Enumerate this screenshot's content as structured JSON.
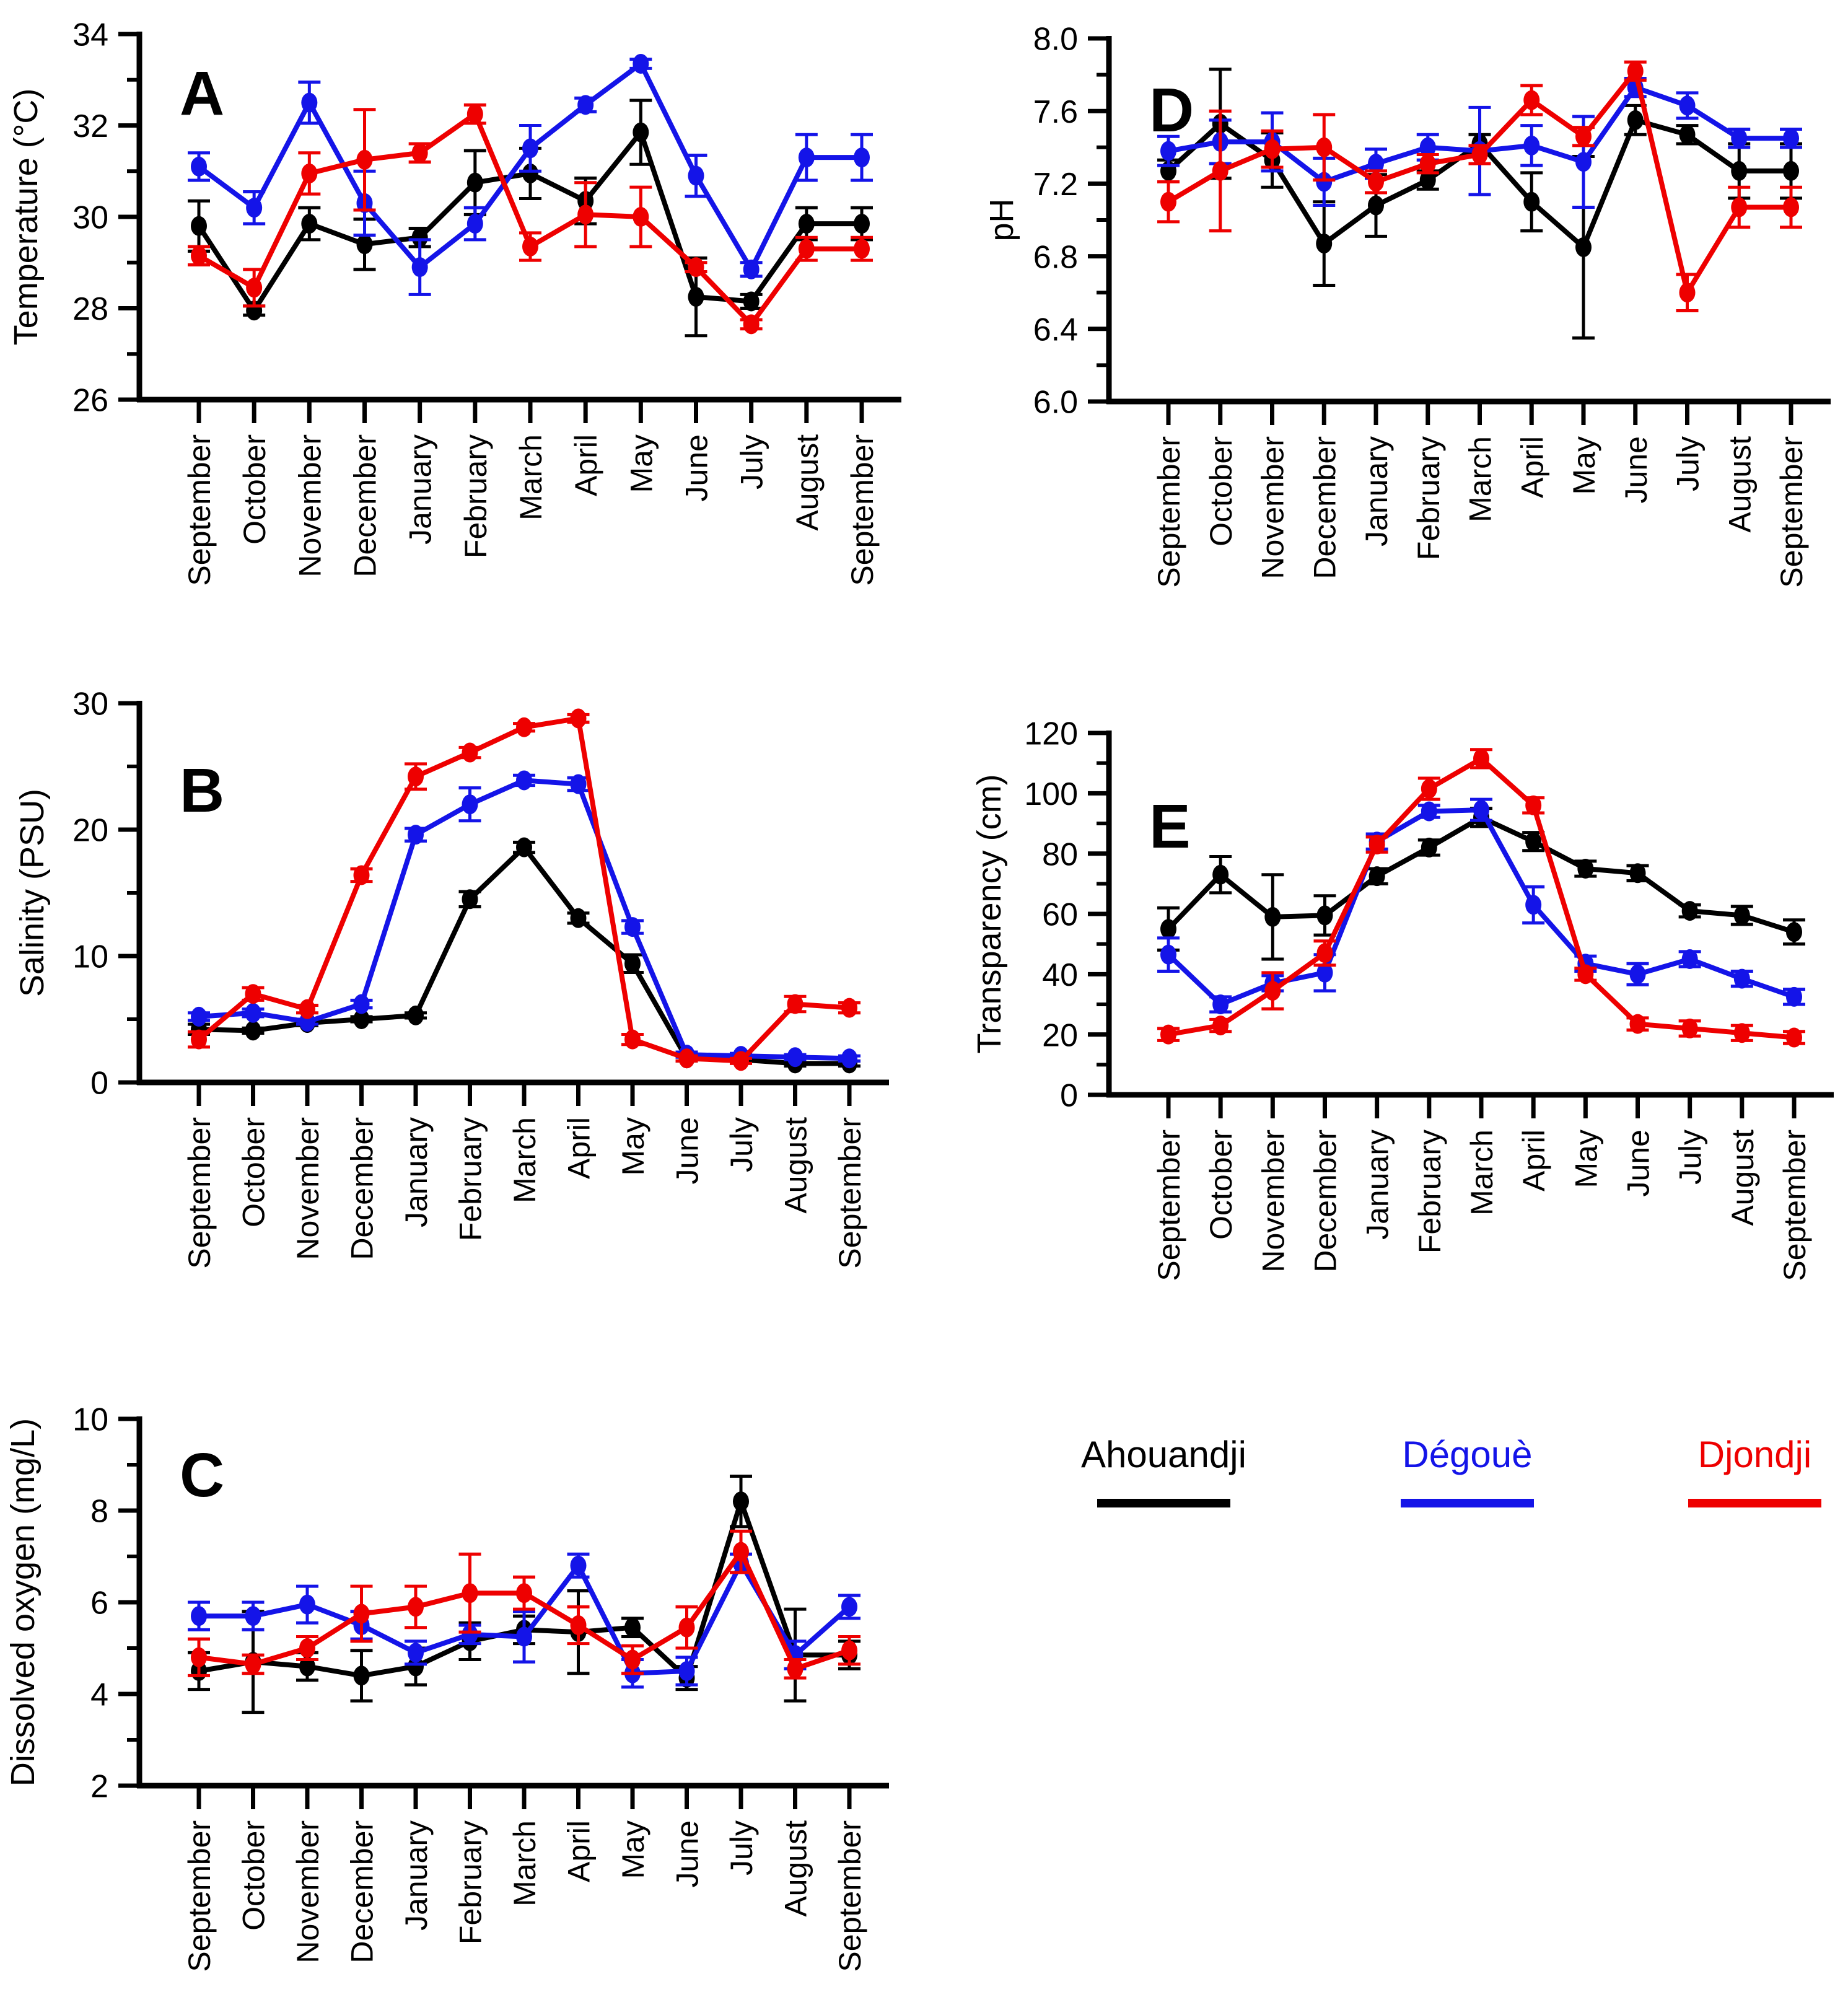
{
  "months": [
    "September",
    "October",
    "November",
    "December",
    "January",
    "February",
    "March",
    "April",
    "May",
    "June",
    "July",
    "August",
    "September"
  ],
  "legend": {
    "items": [
      {
        "label": "Ahouandji",
        "color": "#000000"
      },
      {
        "label": "Dégouè",
        "color": "#1414e8"
      },
      {
        "label": "Djondji",
        "color": "#ee0000"
      }
    ]
  },
  "chart_data": [
    {
      "id": "A",
      "type": "line",
      "panel_label": "A",
      "ylabel": "Temperature (°C)",
      "xlabel": "",
      "ylim": [
        26,
        34
      ],
      "yticks": [
        26,
        28,
        30,
        32,
        34
      ],
      "ydecimals": 0,
      "minor_ticks": true,
      "legend_position": "none",
      "grid": false,
      "series": [
        {
          "name": "Ahouandji",
          "color": "#000000",
          "values": [
            29.8,
            27.95,
            29.85,
            29.4,
            29.55,
            30.75,
            30.95,
            30.35,
            31.85,
            28.25,
            28.15,
            29.85,
            29.85
          ],
          "errors": [
            0.55,
            0.1,
            0.35,
            0.55,
            0.2,
            0.7,
            0.55,
            0.5,
            0.7,
            0.85,
            0.15,
            0.35,
            0.35
          ]
        },
        {
          "name": "Dégouè",
          "color": "#1414e8",
          "values": [
            31.1,
            30.2,
            32.5,
            30.3,
            28.9,
            29.85,
            31.5,
            32.45,
            33.35,
            30.9,
            28.85,
            31.3,
            31.3
          ],
          "errors": [
            0.3,
            0.35,
            0.45,
            0.7,
            0.6,
            0.35,
            0.5,
            0.15,
            0.1,
            0.45,
            0.15,
            0.5,
            0.5
          ]
        },
        {
          "name": "Djondji",
          "color": "#ee0000",
          "values": [
            29.15,
            28.45,
            30.95,
            31.25,
            31.4,
            32.25,
            29.35,
            30.05,
            30.0,
            28.9,
            27.65,
            29.3,
            29.3
          ],
          "errors": [
            0.2,
            0.4,
            0.45,
            1.1,
            0.2,
            0.2,
            0.3,
            0.7,
            0.65,
            0.1,
            0.1,
            0.25,
            0.25
          ]
        }
      ]
    },
    {
      "id": "B",
      "type": "line",
      "panel_label": "B",
      "ylabel": "Salinity (PSU)",
      "xlabel": "",
      "ylim": [
        0,
        30
      ],
      "yticks": [
        0,
        10,
        20,
        30
      ],
      "ydecimals": 0,
      "minor_ticks": true,
      "legend_position": "none",
      "grid": false,
      "series": [
        {
          "name": "Ahouandji",
          "color": "#000000",
          "values": [
            4.2,
            4.1,
            4.7,
            5.0,
            5.3,
            14.5,
            18.6,
            13.0,
            9.4,
            1.9,
            1.8,
            1.5,
            1.5
          ],
          "errors": [
            0.4,
            0.2,
            0.2,
            0.2,
            0.2,
            0.6,
            0.4,
            0.4,
            0.7,
            0.2,
            0.2,
            0.2,
            0.2
          ]
        },
        {
          "name": "Dégouè",
          "color": "#1414e8",
          "values": [
            5.2,
            5.5,
            4.8,
            6.2,
            19.6,
            22.0,
            23.9,
            23.6,
            12.3,
            2.2,
            2.1,
            2.0,
            1.9
          ],
          "errors": [
            0.3,
            0.3,
            0.2,
            0.3,
            0.5,
            1.3,
            0.4,
            0.5,
            0.5,
            0.2,
            0.2,
            0.2,
            0.2
          ]
        },
        {
          "name": "Djondji",
          "color": "#ee0000",
          "values": [
            3.4,
            7.0,
            5.8,
            16.4,
            24.2,
            26.1,
            28.1,
            28.8,
            3.4,
            1.9,
            1.7,
            6.2,
            5.9
          ],
          "errors": [
            0.6,
            0.5,
            0.3,
            0.5,
            1.0,
            0.4,
            0.3,
            0.3,
            0.4,
            0.2,
            0.2,
            0.6,
            0.4
          ]
        }
      ]
    },
    {
      "id": "C",
      "type": "line",
      "panel_label": "C",
      "ylabel": "Dissolved oxygen (mg/L)",
      "xlabel": "",
      "ylim": [
        2,
        10
      ],
      "yticks": [
        2,
        4,
        6,
        8,
        10
      ],
      "ydecimals": 0,
      "minor_ticks": true,
      "legend_position": "none",
      "grid": false,
      "series": [
        {
          "name": "Ahouandji",
          "color": "#000000",
          "values": [
            4.5,
            4.7,
            4.6,
            4.4,
            4.6,
            5.15,
            5.4,
            5.35,
            5.45,
            4.35,
            8.2,
            4.85,
            4.85
          ],
          "errors": [
            0.4,
            1.1,
            0.3,
            0.55,
            0.4,
            0.4,
            0.3,
            0.9,
            0.2,
            0.25,
            0.55,
            1.0,
            0.3
          ]
        },
        {
          "name": "Dégouè",
          "color": "#1414e8",
          "values": [
            5.7,
            5.7,
            5.95,
            5.5,
            4.9,
            5.3,
            5.25,
            6.8,
            4.45,
            4.5,
            6.85,
            4.85,
            5.9
          ],
          "errors": [
            0.3,
            0.3,
            0.4,
            0.3,
            0.25,
            0.2,
            0.55,
            0.25,
            0.3,
            0.3,
            0.2,
            0.3,
            0.25
          ]
        },
        {
          "name": "Djondji",
          "color": "#ee0000",
          "values": [
            4.8,
            4.65,
            5.0,
            5.75,
            5.9,
            6.2,
            6.2,
            5.5,
            4.75,
            5.45,
            7.1,
            4.55,
            4.95
          ],
          "errors": [
            0.4,
            0.2,
            0.25,
            0.6,
            0.45,
            0.85,
            0.35,
            0.4,
            0.3,
            0.45,
            0.45,
            0.2,
            0.3
          ]
        }
      ]
    },
    {
      "id": "D",
      "type": "line",
      "panel_label": "D",
      "ylabel": "pH",
      "xlabel": "",
      "ylim": [
        6.0,
        8.0
      ],
      "yticks": [
        6.0,
        6.4,
        6.8,
        7.2,
        7.6,
        8.0
      ],
      "ydecimals": 1,
      "minor_ticks": true,
      "legend_position": "none",
      "grid": false,
      "series": [
        {
          "name": "Ahouandji",
          "color": "#000000",
          "values": [
            7.27,
            7.53,
            7.33,
            6.87,
            7.08,
            7.22,
            7.42,
            7.1,
            6.85,
            7.55,
            7.47,
            7.27,
            7.27
          ],
          "errors": [
            0.06,
            0.3,
            0.15,
            0.23,
            0.17,
            0.05,
            0.05,
            0.16,
            0.5,
            0.08,
            0.05,
            0.15,
            0.15
          ]
        },
        {
          "name": "Dégouè",
          "color": "#1414e8",
          "values": [
            7.38,
            7.43,
            7.43,
            7.21,
            7.31,
            7.4,
            7.38,
            7.41,
            7.32,
            7.73,
            7.63,
            7.45,
            7.45
          ],
          "errors": [
            0.08,
            0.12,
            0.16,
            0.13,
            0.08,
            0.07,
            0.24,
            0.11,
            0.25,
            0.05,
            0.07,
            0.05,
            0.05
          ]
        },
        {
          "name": "Djondji",
          "color": "#ee0000",
          "values": [
            7.1,
            7.27,
            7.39,
            7.4,
            7.21,
            7.31,
            7.36,
            7.66,
            7.46,
            7.82,
            6.6,
            7.07,
            7.07
          ],
          "errors": [
            0.11,
            0.33,
            0.1,
            0.18,
            0.06,
            0.05,
            0.05,
            0.08,
            0.05,
            0.05,
            0.1,
            0.11,
            0.11
          ]
        }
      ]
    },
    {
      "id": "E",
      "type": "line",
      "panel_label": "E",
      "ylabel": "Transparency (cm)",
      "xlabel": "",
      "ylim": [
        0,
        120
      ],
      "yticks": [
        0,
        20,
        40,
        60,
        80,
        100,
        120
      ],
      "ydecimals": 0,
      "minor_ticks": true,
      "legend_position": "none",
      "grid": false,
      "series": [
        {
          "name": "Ahouandji",
          "color": "#000000",
          "values": [
            55,
            73,
            59,
            59.5,
            72.5,
            82,
            92,
            84,
            75,
            73.5,
            61,
            59.5,
            54
          ],
          "errors": [
            7,
            6,
            14,
            6.5,
            2.5,
            2.5,
            3,
            3,
            2.5,
            2.5,
            2,
            3,
            4
          ]
        },
        {
          "name": "Dégouè",
          "color": "#1414e8",
          "values": [
            46.5,
            30,
            37,
            40.5,
            84,
            94,
            94.5,
            63,
            43.5,
            40,
            45,
            38.5,
            32.5
          ],
          "errors": [
            5.5,
            2.5,
            2.5,
            6,
            2.5,
            2,
            3.5,
            6,
            2.5,
            3.5,
            2.5,
            2.5,
            2.5
          ]
        },
        {
          "name": "Djondji",
          "color": "#ee0000",
          "values": [
            20,
            23,
            34.5,
            47,
            83,
            101.5,
            111.5,
            96,
            40,
            23.5,
            22,
            20.5,
            19
          ],
          "errors": [
            2,
            2,
            6,
            4,
            2.5,
            3.5,
            3,
            2.5,
            2,
            2,
            2.5,
            2.5,
            2
          ]
        }
      ]
    }
  ]
}
